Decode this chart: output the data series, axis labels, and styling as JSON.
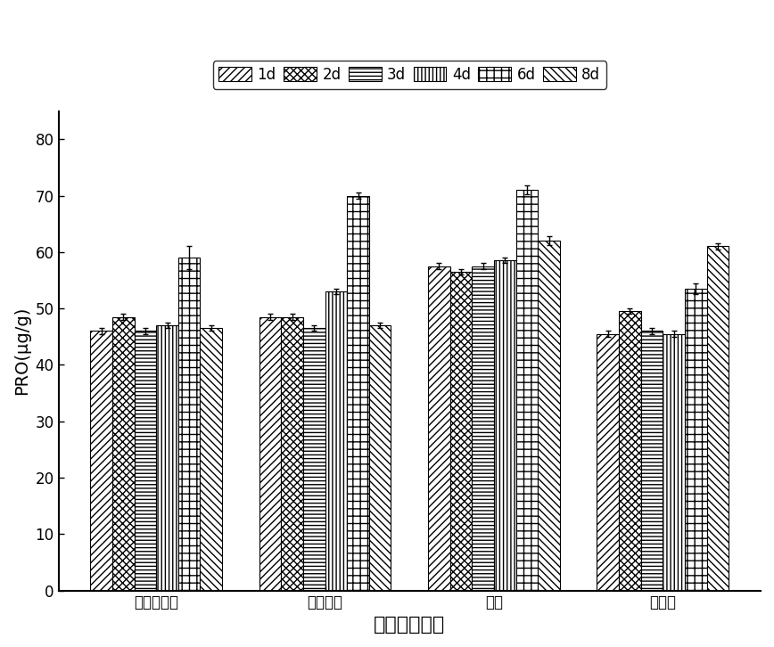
{
  "categories": [
    "粉红粘帚菌",
    "哈茲木霍",
    "混菌",
    "施倍健"
  ],
  "series_labels": [
    "1d",
    "2d",
    "3d",
    "4d",
    "6d",
    "8d"
  ],
  "values": [
    [
      46.0,
      48.5,
      46.0,
      47.0,
      59.0,
      46.5
    ],
    [
      48.5,
      48.5,
      46.5,
      53.0,
      70.0,
      47.0
    ],
    [
      57.5,
      56.5,
      57.5,
      58.5,
      71.0,
      62.0
    ],
    [
      45.5,
      49.5,
      46.0,
      45.5,
      53.5,
      61.0
    ]
  ],
  "errors": [
    [
      0.5,
      0.5,
      0.5,
      0.5,
      2.0,
      0.5
    ],
    [
      0.5,
      0.5,
      0.5,
      0.5,
      0.5,
      0.5
    ],
    [
      0.5,
      0.5,
      0.5,
      0.5,
      0.8,
      0.8
    ],
    [
      0.5,
      0.5,
      0.5,
      0.5,
      1.0,
      0.5
    ]
  ],
  "ylabel": "PRO(μg/g)",
  "xlabel": "不同处理方式",
  "ylim": [
    0,
    85
  ],
  "yticks": [
    0,
    10,
    20,
    30,
    40,
    50,
    60,
    70,
    80
  ],
  "background_color": "#ffffff",
  "bar_edge_color": "#000000",
  "bar_width": 0.13,
  "axis_fontsize": 14,
  "tick_fontsize": 12,
  "legend_fontsize": 12
}
